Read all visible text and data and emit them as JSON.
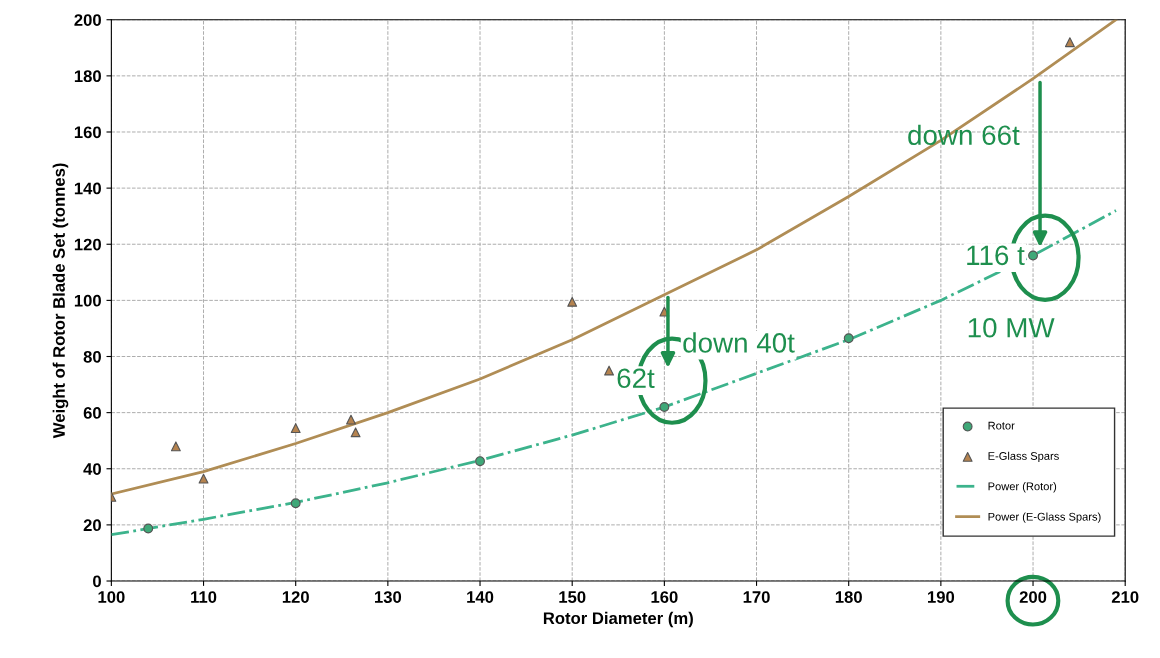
{
  "chart_data": {
    "type": "scatter",
    "xlabel": "Rotor Diameter (m)",
    "ylabel": "Weight of Rotor Blade Set (tonnes)",
    "xlim": [
      100,
      210
    ],
    "xticks": [
      100,
      110,
      120,
      130,
      140,
      150,
      160,
      170,
      180,
      190,
      200,
      210
    ],
    "ylim": [
      0,
      200
    ],
    "yticks": [
      0,
      20,
      40,
      60,
      80,
      100,
      120,
      140,
      160,
      180,
      200
    ],
    "grid": true,
    "legend": "bottom right",
    "series": [
      {
        "name": "Rotor",
        "marker": "circle",
        "color": "#3fa878",
        "x": [
          104,
          120,
          140,
          160,
          180,
          200
        ],
        "values": [
          18.7,
          27.7,
          42.7,
          62,
          86.5,
          116
        ]
      },
      {
        "name": "E-Glass Spars",
        "marker": "triangle",
        "color": "#b5834f",
        "x": [
          100,
          107,
          110,
          120,
          126,
          126.5,
          150,
          154,
          160,
          204
        ],
        "values": [
          30,
          48,
          36.5,
          54.5,
          57.5,
          53,
          99.5,
          75,
          96,
          192
        ]
      },
      {
        "name": "Power (Rotor)",
        "type": "line",
        "line_style": "dashdot",
        "color": "#3cb38c",
        "x": [
          100,
          110,
          120,
          130,
          140,
          150,
          160,
          170,
          180,
          190,
          200,
          209
        ],
        "values": [
          16.5,
          22,
          28,
          35,
          43,
          52,
          62,
          74,
          86,
          100,
          116,
          132
        ]
      },
      {
        "name": "Power (E-Glass Spars)",
        "type": "line",
        "line_style": "solid",
        "color": "#b08d55",
        "x": [
          100,
          110,
          120,
          130,
          140,
          150,
          160,
          170,
          180,
          190,
          200,
          209
        ],
        "values": [
          31,
          39,
          49,
          60,
          72,
          86,
          102,
          118,
          137,
          157,
          179,
          200
        ]
      }
    ],
    "annotations": [
      "down 40t",
      "62t",
      "down 66t",
      "116 t",
      "10 MW"
    ]
  }
}
